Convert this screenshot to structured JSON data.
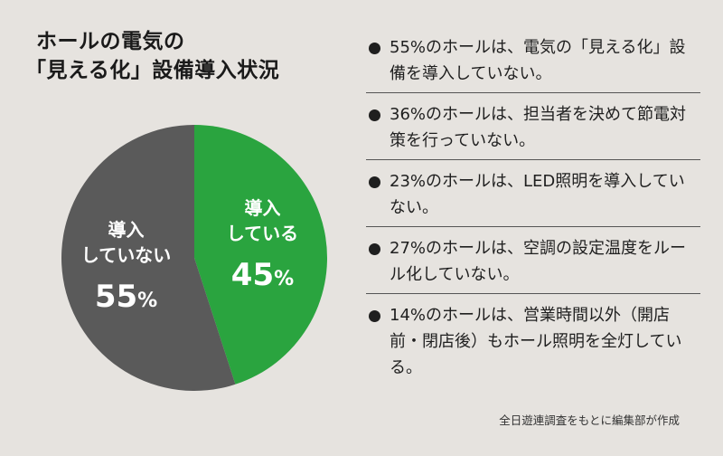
{
  "title": {
    "line1": "ホールの電気の",
    "line2": "「見える化」設備導入状況"
  },
  "colors": {
    "background": "#e6e3df",
    "not_introduced": "#5a5a5a",
    "introduced": "#2aa43f",
    "text_on_slice": "#ffffff"
  },
  "chart_data": {
    "type": "pie",
    "title": "「見える化」設備導入状況",
    "slices": [
      {
        "label_line1": "導入",
        "label_line2": "している",
        "value": 45,
        "value_text": "45",
        "unit": "%"
      },
      {
        "label_line1": "導入",
        "label_line2": "していない",
        "value": 55,
        "value_text": "55",
        "unit": "%"
      }
    ]
  },
  "notes": [
    "55%のホールは、電気の「見える化」設備を導入していない。",
    "36%のホールは、担当者を決めて節電対策を行っていない。",
    "23%のホールは、LED照明を導入していない。",
    "27%のホールは、空調の設定温度をルール化していない。",
    "14%のホールは、営業時間以外（開店前・閉店後）もホール照明を全灯している。"
  ],
  "source": "全日遊連調査をもとに編集部が作成"
}
